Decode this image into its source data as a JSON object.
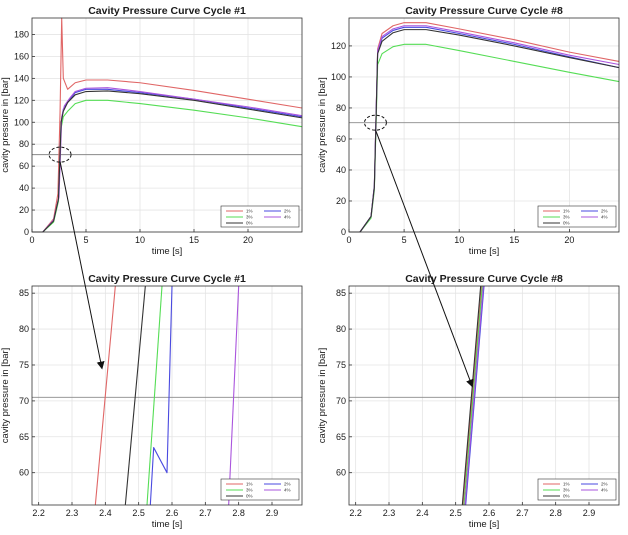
{
  "figure": {
    "layout": "2x2 grid of cavity pressure plots with zoom arrows"
  },
  "chart_data": [
    {
      "type": "line",
      "title": "Cavity Pressure Curve Cycle #1",
      "xlabel": "time [s]",
      "ylabel": "cavity pressure in [bar]",
      "xlim": [
        0,
        25
      ],
      "ylim": [
        0,
        195
      ],
      "xticks": [
        0,
        5,
        10,
        15,
        20
      ],
      "yticks": [
        0,
        20,
        40,
        60,
        80,
        100,
        120,
        140,
        160,
        180
      ],
      "grid": true,
      "legend_position": "bottom-right",
      "reference_line": 70.5,
      "annotation": "zoom ellipse at threshold crossing",
      "series": [
        {
          "name": "1%",
          "color": "#e06666",
          "points": [
            [
              0,
              0
            ],
            [
              1,
              0
            ],
            [
              2,
              12
            ],
            [
              2.4,
              35
            ],
            [
              2.6,
              110
            ],
            [
              2.75,
              195
            ],
            [
              2.9,
              140
            ],
            [
              3.3,
              130
            ],
            [
              4,
              136
            ],
            [
              5,
              138.5
            ],
            [
              7,
              138.5
            ],
            [
              10,
              136
            ],
            [
              15,
              129
            ],
            [
              20,
              121
            ],
            [
              25,
              113
            ]
          ]
        },
        {
          "name": "2%",
          "color": "#4a4ae0",
          "points": [
            [
              0,
              0
            ],
            [
              1,
              0
            ],
            [
              2,
              10
            ],
            [
              2.45,
              30
            ],
            [
              2.7,
              100
            ],
            [
              2.9,
              112
            ],
            [
              3.3,
              118
            ],
            [
              4,
              127
            ],
            [
              5,
              130
            ],
            [
              7,
              130
            ],
            [
              10,
              127
            ],
            [
              15,
              121
            ],
            [
              20,
              113
            ],
            [
              25,
              105
            ]
          ]
        },
        {
          "name": "3%",
          "color": "#55dd55",
          "points": [
            [
              0,
              0
            ],
            [
              1,
              0
            ],
            [
              2,
              9
            ],
            [
              2.45,
              28
            ],
            [
              2.7,
              95
            ],
            [
              2.9,
              105
            ],
            [
              3.3,
              110
            ],
            [
              4,
              117
            ],
            [
              5,
              120
            ],
            [
              7,
              120
            ],
            [
              10,
              117
            ],
            [
              15,
              111
            ],
            [
              20,
              104
            ],
            [
              25,
              96
            ]
          ]
        },
        {
          "name": "4%",
          "color": "#aa55dd",
          "points": [
            [
              0,
              0
            ],
            [
              1,
              0
            ],
            [
              2,
              11
            ],
            [
              2.5,
              32
            ],
            [
              2.75,
              105
            ],
            [
              3.0,
              115
            ],
            [
              3.5,
              122
            ],
            [
              4,
              128
            ],
            [
              5,
              131
            ],
            [
              7,
              131.5
            ],
            [
              10,
              128
            ],
            [
              15,
              121
            ],
            [
              20,
              114
            ],
            [
              25,
              106
            ]
          ]
        },
        {
          "name": "0%",
          "color": "#333333",
          "points": [
            [
              0,
              0
            ],
            [
              1,
              0
            ],
            [
              2,
              10
            ],
            [
              2.45,
              30
            ],
            [
              2.7,
              100
            ],
            [
              2.9,
              110
            ],
            [
              3.3,
              118
            ],
            [
              4,
              125
            ],
            [
              5,
              128
            ],
            [
              7,
              128.5
            ],
            [
              10,
              126
            ],
            [
              15,
              120
            ],
            [
              20,
              112
            ],
            [
              25,
              104
            ]
          ]
        }
      ]
    },
    {
      "type": "line",
      "title": "Cavity Pressure Curve Cycle #8",
      "xlabel": "time [s]",
      "ylabel": "cavity pressure in [bar]",
      "xlim": [
        0,
        24.5
      ],
      "ylim": [
        0,
        138
      ],
      "xticks": [
        0,
        5,
        10,
        15,
        20
      ],
      "yticks": [
        0,
        20,
        40,
        60,
        80,
        100,
        120
      ],
      "grid": true,
      "legend_position": "bottom-right",
      "reference_line": 70.5,
      "annotation": "zoom ellipse at threshold crossing",
      "series": [
        {
          "name": "1%",
          "color": "#e06666",
          "points": [
            [
              0,
              0
            ],
            [
              1,
              0
            ],
            [
              2,
              10
            ],
            [
              2.3,
              30
            ],
            [
              2.6,
              118
            ],
            [
              3,
              128
            ],
            [
              4,
              133
            ],
            [
              5,
              135
            ],
            [
              7,
              135
            ],
            [
              10,
              131
            ],
            [
              15,
              124
            ],
            [
              20,
              116
            ],
            [
              24.5,
              110
            ]
          ]
        },
        {
          "name": "2%",
          "color": "#4a4ae0",
          "points": [
            [
              0,
              0
            ],
            [
              1,
              0
            ],
            [
              2,
              10
            ],
            [
              2.3,
              30
            ],
            [
              2.6,
              116
            ],
            [
              3,
              125
            ],
            [
              4,
              130
            ],
            [
              5,
              132
            ],
            [
              7,
              132
            ],
            [
              10,
              128
            ],
            [
              15,
              121
            ],
            [
              20,
              113
            ],
            [
              24.5,
              106
            ]
          ]
        },
        {
          "name": "3%",
          "color": "#55dd55",
          "points": [
            [
              0,
              0
            ],
            [
              1,
              0
            ],
            [
              2,
              9
            ],
            [
              2.3,
              27
            ],
            [
              2.6,
              108
            ],
            [
              3,
              115
            ],
            [
              4,
              119.5
            ],
            [
              5,
              121
            ],
            [
              7,
              121
            ],
            [
              10,
              117
            ],
            [
              15,
              110
            ],
            [
              20,
              103
            ],
            [
              24.5,
              97
            ]
          ]
        },
        {
          "name": "4%",
          "color": "#aa55dd",
          "points": [
            [
              0,
              0
            ],
            [
              1,
              0
            ],
            [
              2,
              10
            ],
            [
              2.3,
              29
            ],
            [
              2.6,
              117
            ],
            [
              3,
              126
            ],
            [
              4,
              131
            ],
            [
              5,
              133
            ],
            [
              7,
              133
            ],
            [
              10,
              129
            ],
            [
              15,
              122
            ],
            [
              20,
              114
            ],
            [
              24.5,
              108
            ]
          ]
        },
        {
          "name": "0%",
          "color": "#333333",
          "points": [
            [
              0,
              0
            ],
            [
              1,
              0
            ],
            [
              2,
              10
            ],
            [
              2.3,
              29
            ],
            [
              2.6,
              115
            ],
            [
              3,
              123
            ],
            [
              4,
              128.5
            ],
            [
              5,
              130.5
            ],
            [
              7,
              130.5
            ],
            [
              10,
              127
            ],
            [
              15,
              120
            ],
            [
              20,
              112.5
            ],
            [
              24.5,
              106
            ]
          ]
        }
      ]
    },
    {
      "type": "line",
      "title": "Cavity Pressure Curve Cycle #1",
      "xlabel": "time [s]",
      "ylabel": "cavity pressure in [bar]",
      "xlim": [
        2.18,
        2.99
      ],
      "ylim": [
        55.5,
        86
      ],
      "xticks": [
        2.2,
        2.3,
        2.4,
        2.5,
        2.6,
        2.7,
        2.8,
        2.9
      ],
      "yticks": [
        60,
        65,
        70,
        75,
        80,
        85
      ],
      "grid": true,
      "legend_position": "bottom-right",
      "reference_line": 70.5,
      "series": [
        {
          "name": "1%",
          "color": "#e06666",
          "points": [
            [
              2.37,
              55.5
            ],
            [
              2.43,
              86
            ]
          ]
        },
        {
          "name": "2%",
          "color": "#4a4ae0",
          "points": [
            [
              2.535,
              55.5
            ],
            [
              2.545,
              63.5
            ],
            [
              2.585,
              60
            ],
            [
              2.6,
              86
            ]
          ]
        },
        {
          "name": "3%",
          "color": "#55dd55",
          "points": [
            [
              2.525,
              55.5
            ],
            [
              2.57,
              86
            ]
          ]
        },
        {
          "name": "4%",
          "color": "#aa55dd",
          "points": [
            [
              2.77,
              55.5
            ],
            [
              2.8,
              86
            ]
          ]
        },
        {
          "name": "0%",
          "color": "#333333",
          "points": [
            [
              2.46,
              55.5
            ],
            [
              2.52,
              86
            ]
          ]
        }
      ]
    },
    {
      "type": "line",
      "title": "Cavity Pressure Curve Cycle #8",
      "xlabel": "time [s]",
      "ylabel": "cavity pressure in [bar]",
      "xlim": [
        2.18,
        2.99
      ],
      "ylim": [
        55.5,
        86
      ],
      "xticks": [
        2.2,
        2.3,
        2.4,
        2.5,
        2.6,
        2.7,
        2.8,
        2.9
      ],
      "yticks": [
        60,
        65,
        70,
        75,
        80,
        85
      ],
      "grid": true,
      "legend_position": "bottom-right",
      "reference_line": 70.5,
      "series": [
        {
          "name": "1%",
          "color": "#e06666",
          "points": [
            [
              2.522,
              55.5
            ],
            [
              2.578,
              86
            ]
          ]
        },
        {
          "name": "2%",
          "color": "#4a4ae0",
          "points": [
            [
              2.53,
              55.5
            ],
            [
              2.585,
              86
            ]
          ]
        },
        {
          "name": "3%",
          "color": "#55dd55",
          "points": [
            [
              2.525,
              55.5
            ],
            [
              2.58,
              86
            ]
          ]
        },
        {
          "name": "4%",
          "color": "#aa55dd",
          "points": [
            [
              2.528,
              55.5
            ],
            [
              2.583,
              86
            ]
          ]
        },
        {
          "name": "0%",
          "color": "#333333",
          "points": [
            [
              2.52,
              55.5
            ],
            [
              2.575,
              86
            ]
          ]
        }
      ]
    }
  ]
}
